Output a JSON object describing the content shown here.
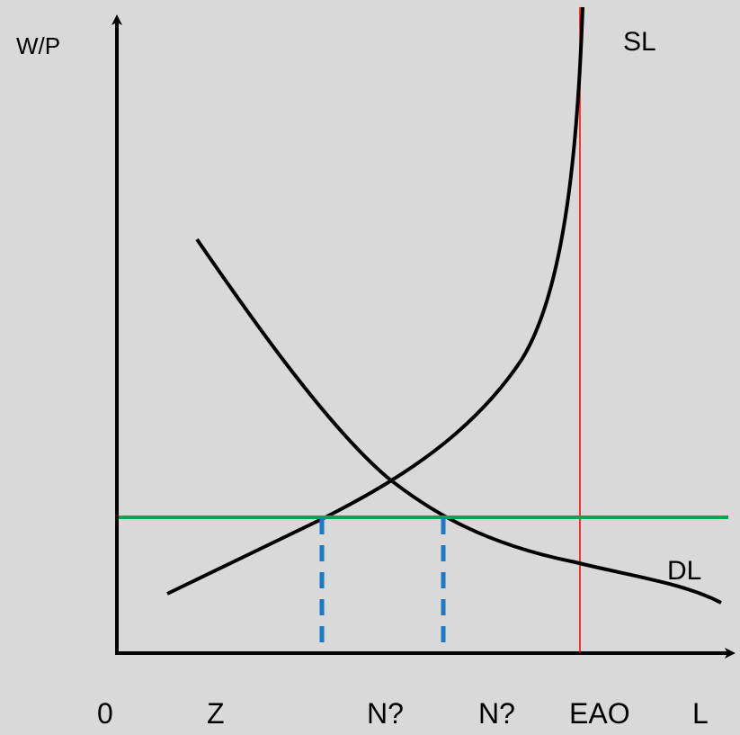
{
  "axes": {
    "y_label": "W/P",
    "x_label": "L",
    "origin_label": "0"
  },
  "curves": {
    "supply_label": "SL",
    "demand_label": "DL"
  },
  "x_markers": {
    "z": "Z",
    "n1": "N?",
    "n2": "N?",
    "eao": "EAO"
  },
  "colors": {
    "background": "#d9d9d9",
    "axis": "#000000",
    "curve": "#000000",
    "wage_line": "#00a650",
    "dashed_drop": "#1f77c8",
    "eao_line": "#ff0000"
  }
}
